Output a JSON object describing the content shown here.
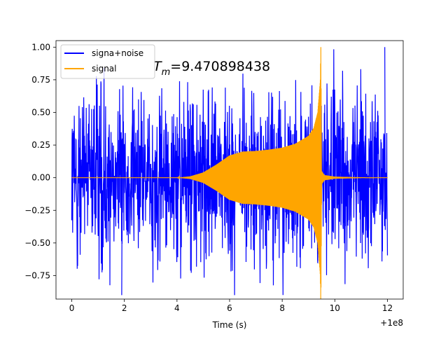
{
  "chart_data": {
    "type": "line",
    "xlabel": "Time (s)",
    "ylabel": "",
    "x_offset_label": "+1e8",
    "xlim": [
      -0.6,
      12.6
    ],
    "ylim": [
      -0.93,
      1.05
    ],
    "xticks": [
      0,
      2,
      4,
      6,
      8,
      10,
      12
    ],
    "xtick_labels": [
      "0",
      "2",
      "4",
      "6",
      "8",
      "10",
      "12"
    ],
    "yticks": [
      -0.75,
      -0.5,
      -0.25,
      0.0,
      0.25,
      0.5,
      0.75,
      1.0
    ],
    "ytick_labels": [
      "−0.75",
      "−0.50",
      "−0.25",
      "0.00",
      "0.25",
      "0.50",
      "0.75",
      "1.00"
    ],
    "grid": false,
    "legend_position": "top-left",
    "annotation": {
      "symbol": "T",
      "subscript": "m",
      "value_text": "=9.470898438",
      "x": 3.1,
      "y": 0.82
    },
    "series": [
      {
        "name": "signa+noise",
        "color": "#0000ff",
        "x_start": 0,
        "x_end": 12,
        "noise_amplitude_typical": 0.55,
        "noise_peak_max": 1.0,
        "noise_peak_min": -0.9
      },
      {
        "name": "signal",
        "color": "#ffa500",
        "envelope": [
          [
            0,
            0.0
          ],
          [
            4,
            0.0
          ],
          [
            4.5,
            0.01
          ],
          [
            5.0,
            0.04
          ],
          [
            5.5,
            0.1
          ],
          [
            6.0,
            0.17
          ],
          [
            6.5,
            0.2
          ],
          [
            7.0,
            0.205
          ],
          [
            7.5,
            0.215
          ],
          [
            8.0,
            0.23
          ],
          [
            8.5,
            0.26
          ],
          [
            9.0,
            0.32
          ],
          [
            9.2,
            0.38
          ],
          [
            9.35,
            0.5
          ],
          [
            9.45,
            0.75
          ],
          [
            9.47,
            1.0
          ],
          [
            9.5,
            0.05
          ],
          [
            9.6,
            0.02
          ],
          [
            10,
            0.008
          ],
          [
            11,
            0.003
          ],
          [
            12,
            0.002
          ]
        ],
        "peak_max": 1.0,
        "peak_min": -0.84
      }
    ]
  }
}
